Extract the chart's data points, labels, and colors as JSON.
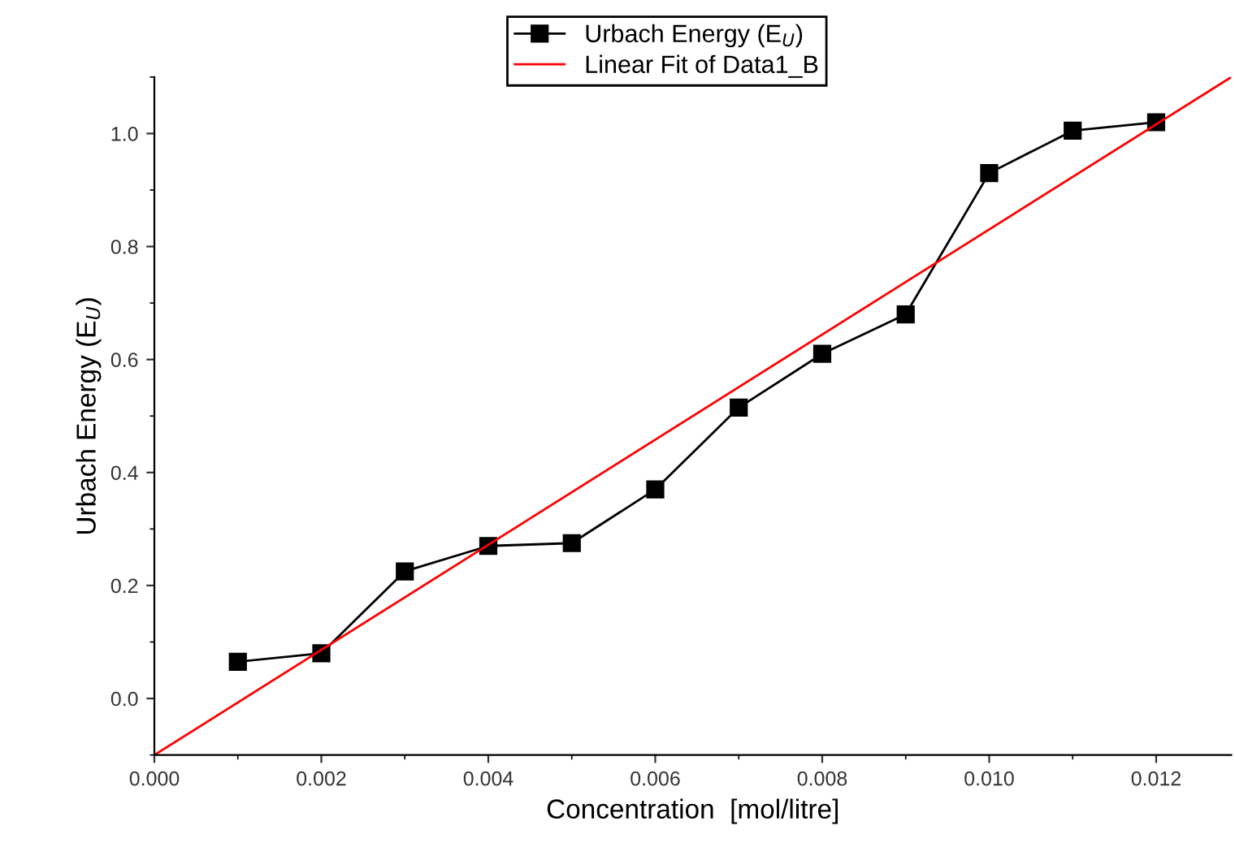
{
  "chart_data": {
    "type": "line",
    "xlabel": "Concentration  [mol/litre]",
    "ylabel": "Urbach Energy (E$_{U}$)",
    "x": [
      0.001,
      0.002,
      0.003,
      0.004,
      0.005,
      0.006,
      0.007,
      0.008,
      0.009,
      0.01,
      0.011,
      0.012
    ],
    "series": [
      {
        "name": "Urbach Energy (E$_{U}$)",
        "color": "#000000",
        "marker": "square",
        "values": [
          0.065,
          0.08,
          0.225,
          0.27,
          0.275,
          0.37,
          0.515,
          0.61,
          0.68,
          0.93,
          1.005,
          1.02
        ]
      },
      {
        "name": "Linear Fit of Data1_B",
        "color": "#ff0000",
        "marker": "none",
        "x": [
          0.0,
          0.0129
        ],
        "values": [
          -0.1,
          1.1
        ]
      }
    ],
    "xlim": [
      0.0,
      0.0129
    ],
    "ylim": [
      -0.1,
      1.1
    ],
    "xticks": [
      {
        "value": 0.0,
        "label": "0.000"
      },
      {
        "value": 0.002,
        "label": "0.002"
      },
      {
        "value": 0.004,
        "label": "0.004"
      },
      {
        "value": 0.006,
        "label": "0.006"
      },
      {
        "value": 0.008,
        "label": "0.008"
      },
      {
        "value": 0.01,
        "label": "0.010"
      },
      {
        "value": 0.012,
        "label": "0.012"
      }
    ],
    "yticks": [
      {
        "value": 0.0,
        "label": "0.0"
      },
      {
        "value": 0.2,
        "label": "0.2"
      },
      {
        "value": 0.4,
        "label": "0.4"
      },
      {
        "value": 0.6,
        "label": "0.6"
      },
      {
        "value": 0.8,
        "label": "0.8"
      },
      {
        "value": 1.0,
        "label": "1.0"
      }
    ],
    "grid": false,
    "legend": "top"
  }
}
